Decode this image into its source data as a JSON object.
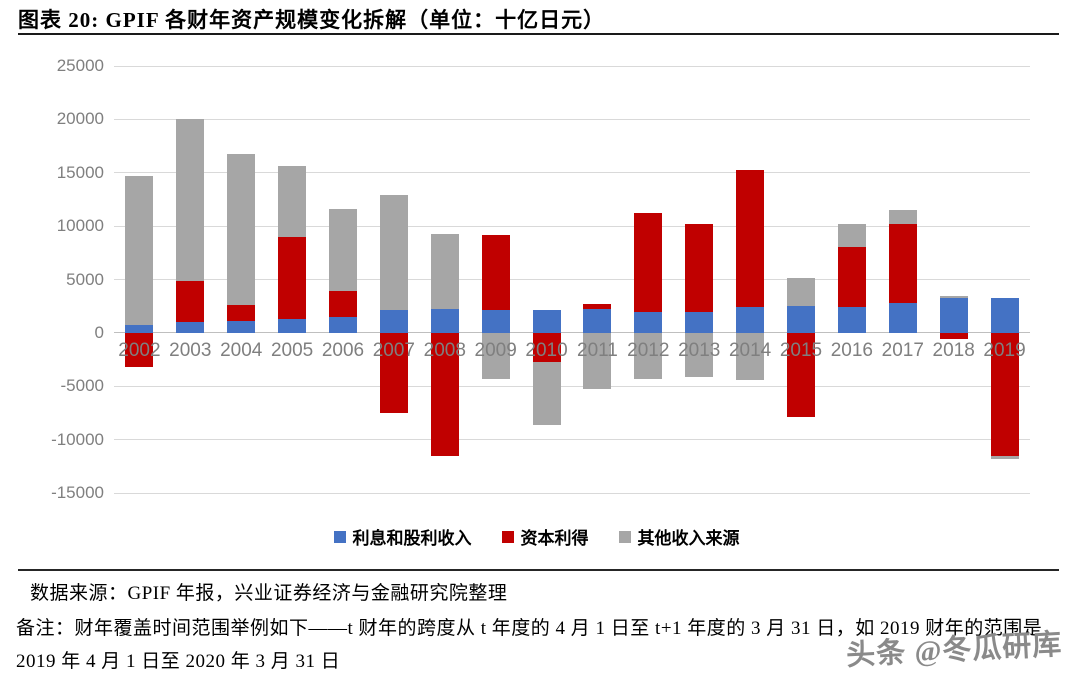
{
  "header": {
    "title": "图表 20: GPIF 各财年资产规模变化拆解（单位：十亿日元）"
  },
  "chart_data": {
    "type": "bar",
    "stacked": true,
    "title": "GPIF 各财年资产规模变化拆解",
    "unit": "十亿日元",
    "categories": [
      "2002",
      "2003",
      "2004",
      "2005",
      "2006",
      "2007",
      "2008",
      "2009",
      "2010",
      "2011",
      "2012",
      "2013",
      "2014",
      "2015",
      "2016",
      "2017",
      "2018",
      "2019"
    ],
    "series": [
      {
        "name": "利息和股利收入",
        "color": "#4472c4",
        "values": [
          700,
          1000,
          1100,
          1300,
          1500,
          2100,
          2200,
          2100,
          2100,
          2200,
          2000,
          2000,
          2400,
          2500,
          2400,
          2800,
          3300,
          3300
        ]
      },
      {
        "name": "资本利得",
        "color": "#c00000",
        "values": [
          -3200,
          3900,
          1500,
          7700,
          2400,
          -7500,
          -11500,
          7100,
          -2700,
          500,
          9200,
          8200,
          12900,
          -7900,
          5600,
          7400,
          -600,
          -11500
        ]
      },
      {
        "name": "其他收入来源",
        "color": "#a6a6a6",
        "values": [
          14000,
          15100,
          14200,
          6600,
          7700,
          10800,
          7100,
          -4300,
          -5900,
          -5300,
          -4300,
          -4100,
          -4400,
          2600,
          2200,
          1300,
          200,
          -300
        ]
      }
    ],
    "ylim": [
      -15000,
      25000
    ],
    "yticks": [
      25000,
      20000,
      15000,
      10000,
      5000,
      0,
      -5000,
      -10000,
      -15000
    ],
    "grid": true,
    "legend_position": "bottom",
    "xlabel": "",
    "ylabel": ""
  },
  "colors": {
    "gridline": "#d9d9d9",
    "zero_axis": "#bfbfbf",
    "axis_text": "#7f7f7f"
  },
  "footer": {
    "source": "数据来源：GPIF 年报，兴业证券经济与金融研究院整理",
    "note": "备注：财年覆盖时间范围举例如下——t 财年的跨度从 t 年度的 4 月 1 日至 t+1 年度的 3 月 31 日，如 2019 财年的范围是 2019 年 4 月 1 日至 2020 年 3 月 31 日"
  },
  "watermark": {
    "text": "头条 @冬瓜研库"
  }
}
